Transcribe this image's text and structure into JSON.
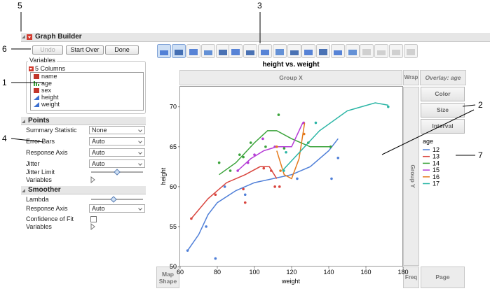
{
  "callouts": [
    "5",
    "6",
    "1",
    "4",
    "3",
    "2",
    "7"
  ],
  "header": {
    "title": "Graph Builder"
  },
  "buttons": [
    "Undo",
    "Start Over",
    "Done"
  ],
  "variables": {
    "title": "Variables",
    "count": "5 Columns",
    "columns": [
      "name",
      "age",
      "sex",
      "height",
      "weight"
    ]
  },
  "points": {
    "title": "Points",
    "rows": [
      {
        "label": "Summary Statistic",
        "value": "None"
      },
      {
        "label": "Error Bars",
        "value": "Auto"
      },
      {
        "label": "Response Axis",
        "value": "Auto"
      },
      {
        "label": "Jitter",
        "value": "Auto"
      }
    ],
    "jitter_limit": "Jitter Limit",
    "variables": "Variables"
  },
  "smoother": {
    "title": "Smoother",
    "lambda": "Lambda",
    "response_axis": {
      "label": "Response Axis",
      "value": "Auto"
    },
    "confidence": "Confidence of Fit",
    "variables": "Variables"
  },
  "zones": {
    "group_x": "Group X",
    "wrap": "Wrap",
    "overlay": "Overlay: age",
    "color": "Color",
    "size": "Size",
    "interval": "Interval",
    "group_y": "Group Y",
    "map_shape": "Map Shape",
    "freq": "Freq",
    "page": "Page"
  },
  "chart_data": {
    "type": "scatter",
    "title": "height vs. weight",
    "xlabel": "weight",
    "ylabel": "height",
    "legend_title": "age",
    "xlim": [
      60,
      180
    ],
    "ylim": [
      50,
      72.6
    ],
    "xticks": [
      60,
      80,
      100,
      120,
      140,
      160,
      180
    ],
    "yticks": [
      50,
      55,
      60,
      65,
      70
    ],
    "series": [
      {
        "name": "12",
        "color": "#4f7fd8",
        "x": [
          64,
          74,
          79,
          84,
          95,
          123,
          141.5,
          145
        ],
        "values": [
          52,
          55,
          51,
          60,
          59,
          61,
          61,
          63.6
        ],
        "curve_x": [
          64,
          70,
          75,
          80,
          90,
          100,
          110,
          120,
          130,
          140,
          145
        ],
        "curve_y": [
          52,
          54,
          56.5,
          58,
          59.5,
          60.5,
          61,
          61.5,
          62.5,
          64.5,
          66
        ]
      },
      {
        "name": "13",
        "color": "#d9453e",
        "x": [
          66,
          79,
          94,
          95,
          105,
          109,
          111,
          113.5
        ],
        "values": [
          56,
          59,
          59.7,
          58,
          62.3,
          62,
          60,
          60
        ],
        "curve_x": [
          66,
          75,
          85,
          95,
          103,
          108,
          112
        ],
        "curve_y": [
          56,
          58.5,
          60.5,
          61.5,
          62.5,
          62.5,
          61
        ]
      },
      {
        "name": "14",
        "color": "#3aa33a",
        "x": [
          81,
          87,
          92,
          94,
          98,
          106,
          113,
          116,
          129,
          141
        ],
        "values": [
          63,
          62,
          64,
          63.7,
          65.5,
          65,
          69,
          64.8,
          65.5,
          65
        ],
        "curve_x": [
          81,
          90,
          100,
          107,
          112,
          120,
          130,
          141
        ],
        "curve_y": [
          61.5,
          63,
          65.5,
          67,
          67,
          66,
          65,
          65
        ]
      },
      {
        "name": "15",
        "color": "#b53cd6",
        "x": [
          91,
          96.5,
          100,
          104.5,
          111,
          126.5
        ],
        "values": [
          62,
          63,
          64,
          66,
          65,
          68
        ],
        "curve_x": [
          91,
          98,
          105,
          112,
          120,
          126
        ],
        "curve_y": [
          62,
          63.5,
          64.5,
          65,
          65,
          68
        ]
      },
      {
        "name": "16",
        "color": "#e57b1e",
        "x": [
          112,
          114,
          126.7
        ],
        "values": [
          65,
          62,
          66.6
        ],
        "curve_x": [
          112,
          116,
          120,
          124,
          127
        ],
        "curve_y": [
          64.5,
          61.5,
          61,
          63.5,
          68
        ]
      },
      {
        "name": "17",
        "color": "#2ab5a5",
        "x": [
          115.8,
          117,
          133,
          172
        ],
        "values": [
          62,
          64.3,
          68,
          70
        ],
        "curve_x": [
          115,
          125,
          135,
          150,
          165,
          172
        ],
        "curve_y": [
          62,
          64.5,
          67,
          69.5,
          70.5,
          70.2
        ]
      }
    ]
  }
}
